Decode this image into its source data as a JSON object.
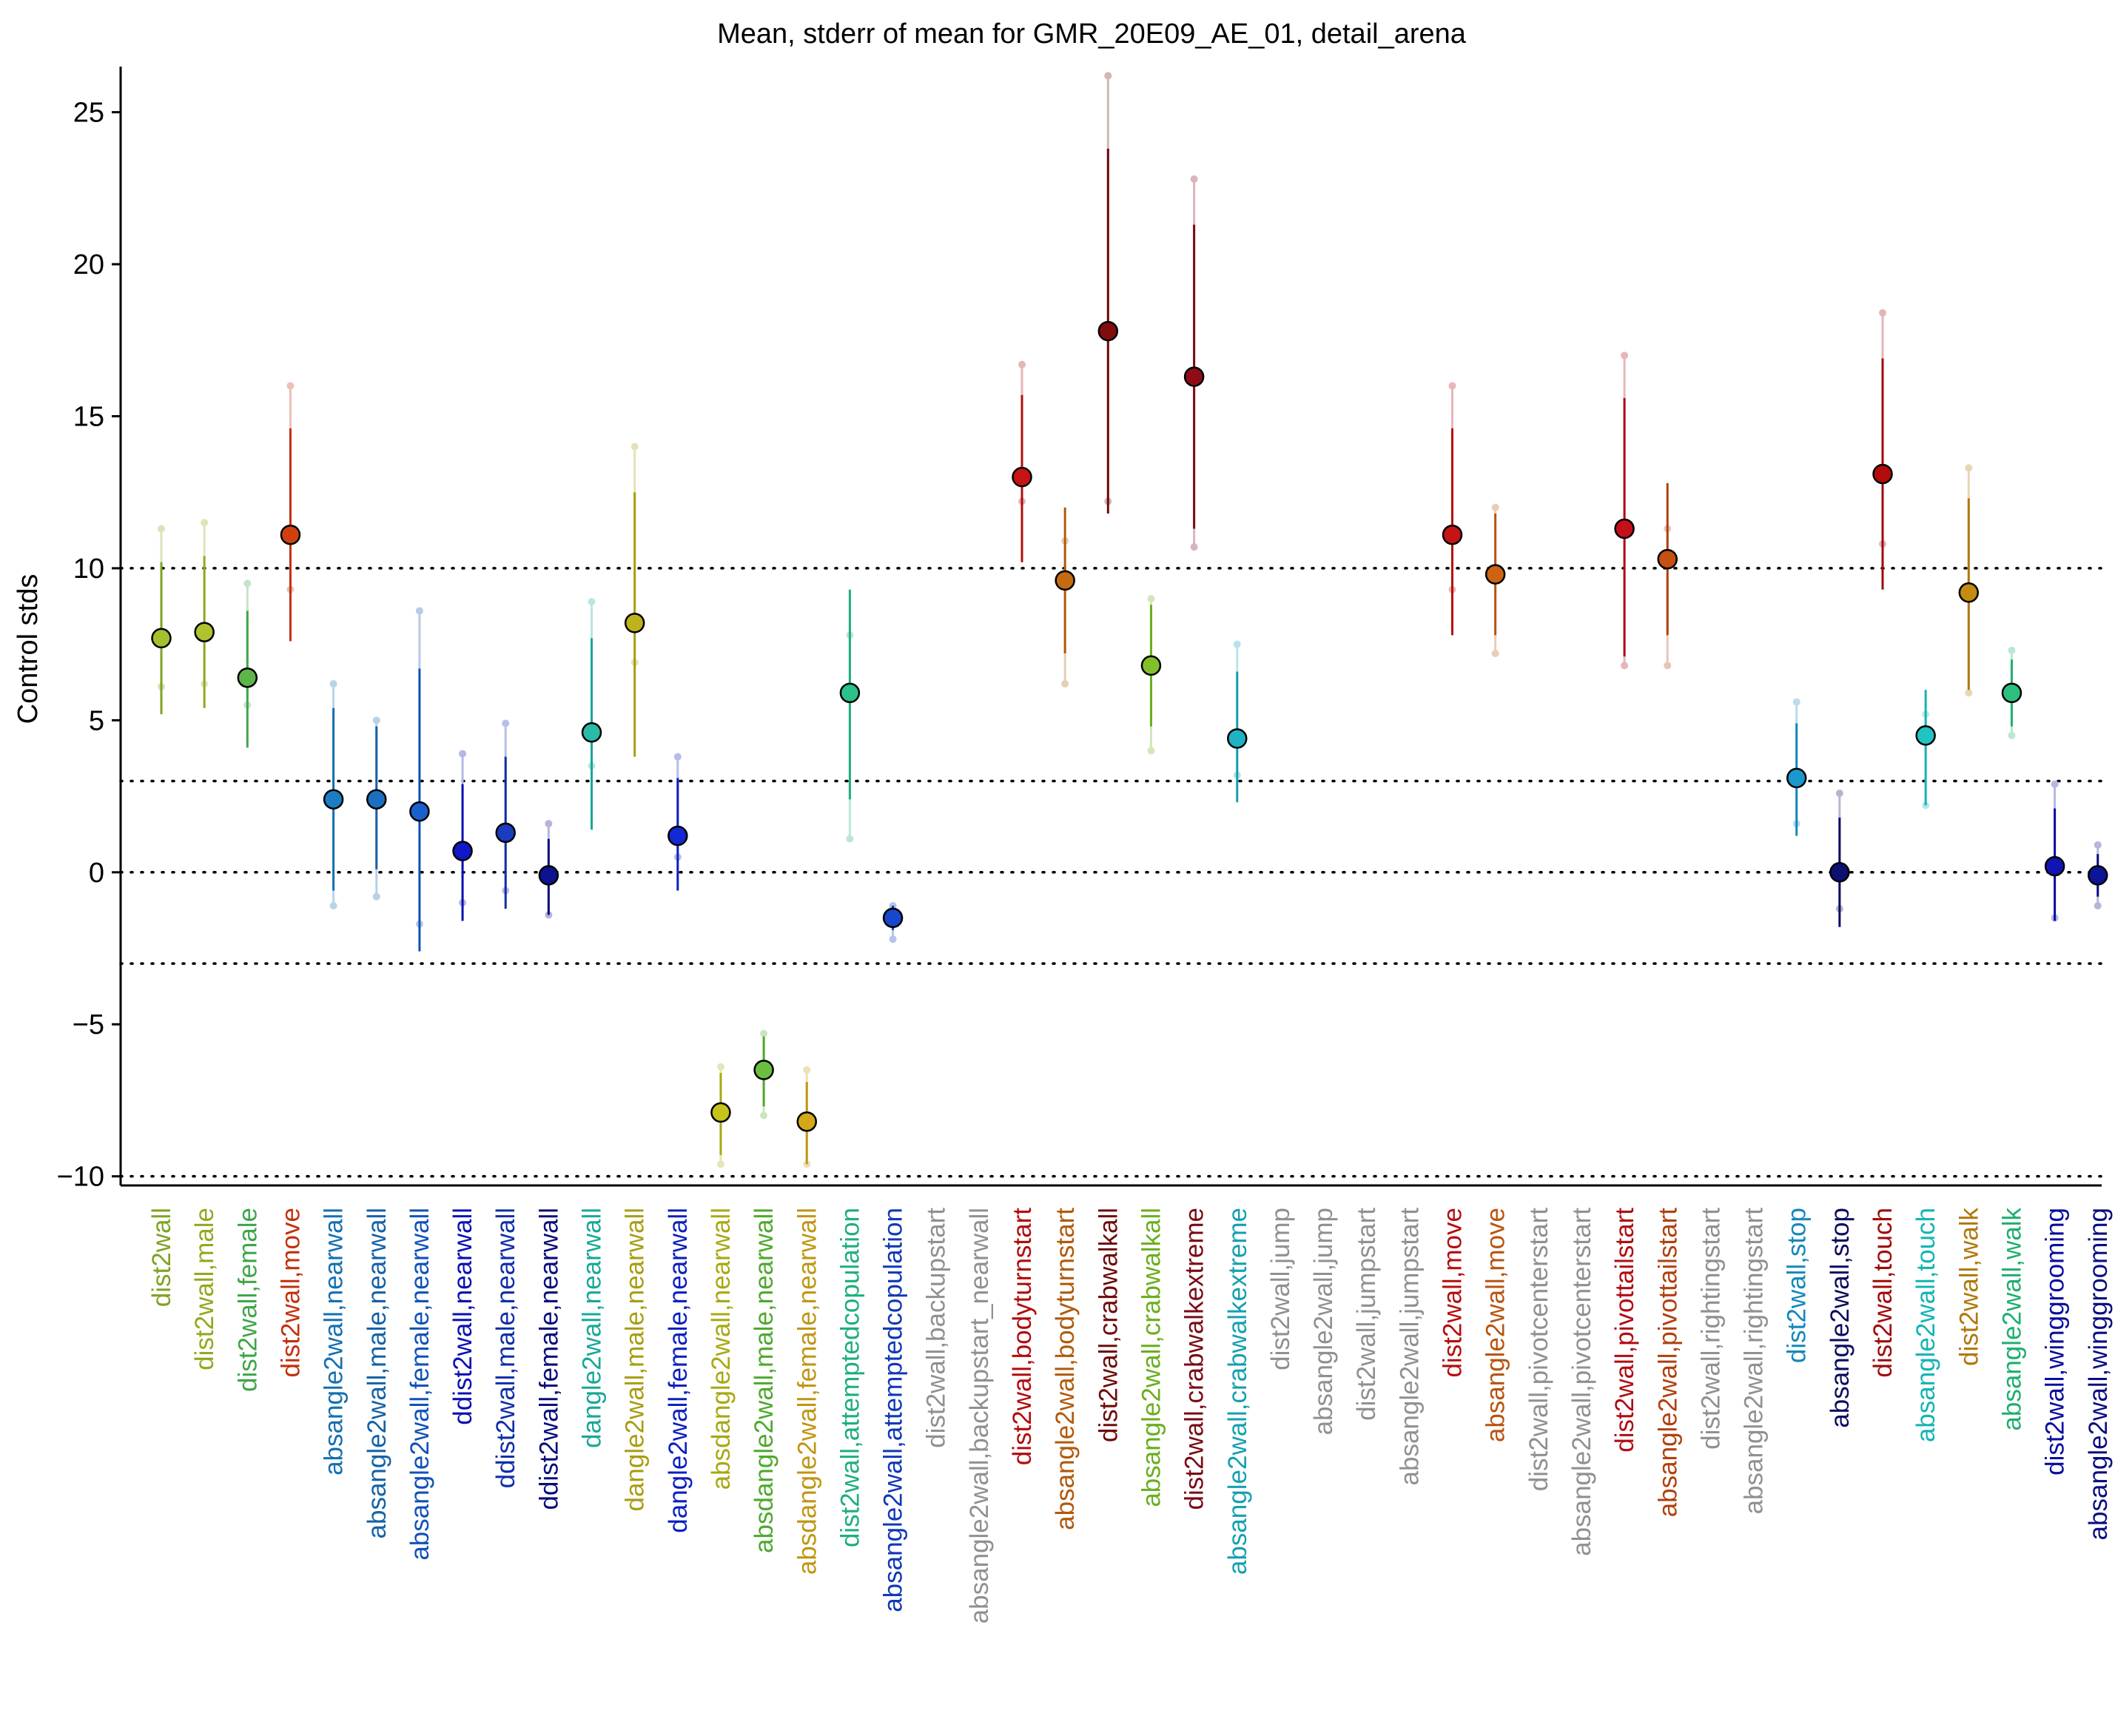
{
  "chart_data": {
    "type": "scatter",
    "title": "Mean, stderr of mean for GMR_20E09_AE_01, detail_arena",
    "xlabel": "",
    "ylabel": "Control stds",
    "ylim": [
      -10.3,
      26.5
    ],
    "yticks": [
      25,
      20,
      15,
      10,
      5,
      0,
      -5,
      -10
    ],
    "ytick_labels": [
      "25",
      "20",
      "15",
      "10",
      "5",
      "0",
      "−5",
      "−10"
    ],
    "reference_lines": [
      10,
      3,
      0,
      -3,
      -10
    ],
    "reference_line_style": "dotted",
    "points": [
      {
        "label": "dist2wall",
        "mean": 7.7,
        "sem_lo": 5.2,
        "sem_hi": 10.2,
        "ext_lo": 6.1,
        "ext_hi": 11.3,
        "color": "#7FA321",
        "fill": "#A4C02E"
      },
      {
        "label": "dist2wall,male",
        "mean": 7.9,
        "sem_lo": 5.4,
        "sem_hi": 10.4,
        "ext_lo": 6.2,
        "ext_hi": 11.5,
        "color": "#8FAA1E",
        "fill": "#B0C230"
      },
      {
        "label": "dist2wall,female",
        "mean": 6.4,
        "sem_lo": 4.1,
        "sem_hi": 8.6,
        "ext_lo": 5.5,
        "ext_hi": 9.5,
        "color": "#3FA548",
        "fill": "#5DB64B"
      },
      {
        "label": "dist2wall,move",
        "mean": 11.1,
        "sem_lo": 7.6,
        "sem_hi": 14.6,
        "ext_lo": 9.3,
        "ext_hi": 16.0,
        "color": "#C2300E",
        "fill": "#D0400E"
      },
      {
        "label": "absangle2wall,nearwall",
        "mean": 2.4,
        "sem_lo": -0.6,
        "sem_hi": 5.4,
        "ext_lo": -1.1,
        "ext_hi": 6.2,
        "color": "#1570B0",
        "fill": "#1D7DC2"
      },
      {
        "label": "absangle2wall,male,nearwall",
        "mean": 2.4,
        "sem_lo": 0.1,
        "sem_hi": 4.8,
        "ext_lo": -0.8,
        "ext_hi": 5.0,
        "color": "#1462A8",
        "fill": "#1C6FBE"
      },
      {
        "label": "absangle2wall,female,nearwall",
        "mean": 2.0,
        "sem_lo": -2.6,
        "sem_hi": 6.7,
        "ext_lo": -1.7,
        "ext_hi": 8.6,
        "color": "#1052B8",
        "fill": "#1A60CC"
      },
      {
        "label": "ddist2wall,nearwall",
        "mean": 0.7,
        "sem_lo": -1.6,
        "sem_hi": 2.9,
        "ext_lo": -1.0,
        "ext_hi": 3.9,
        "color": "#0A10B0",
        "fill": "#1018C8"
      },
      {
        "label": "ddist2wall,male,nearwall",
        "mean": 1.3,
        "sem_lo": -1.2,
        "sem_hi": 3.8,
        "ext_lo": -0.6,
        "ext_hi": 4.9,
        "color": "#0F2EA8",
        "fill": "#1A3CBE"
      },
      {
        "label": "ddist2wall,female,nearwall",
        "mean": -0.1,
        "sem_lo": -1.4,
        "sem_hi": 1.1,
        "ext_lo": -1.4,
        "ext_hi": 1.6,
        "color": "#080C7A",
        "fill": "#0D138F"
      },
      {
        "label": "dangle2wall,nearwall",
        "mean": 4.6,
        "sem_lo": 1.4,
        "sem_hi": 7.7,
        "ext_lo": 3.5,
        "ext_hi": 8.9,
        "color": "#18A898",
        "fill": "#2ABAA8"
      },
      {
        "label": "dangle2wall,male,nearwall",
        "mean": 8.2,
        "sem_lo": 3.8,
        "sem_hi": 12.5,
        "ext_lo": 6.9,
        "ext_hi": 14.0,
        "color": "#A89D12",
        "fill": "#BFB21C"
      },
      {
        "label": "dangle2wall,female,nearwall",
        "mean": 1.2,
        "sem_lo": -0.6,
        "sem_hi": 3.1,
        "ext_lo": 0.5,
        "ext_hi": 3.8,
        "color": "#0C20C0",
        "fill": "#1428D4"
      },
      {
        "label": "absdangle2wall,nearwall",
        "mean": -7.9,
        "sem_lo": -9.3,
        "sem_hi": -6.6,
        "ext_lo": -9.6,
        "ext_hi": -6.4,
        "color": "#A8A812",
        "fill": "#C4C41A"
      },
      {
        "label": "absdangle2wall,male,nearwall",
        "mean": -6.5,
        "sem_lo": -7.7,
        "sem_hi": -5.4,
        "ext_lo": -8.0,
        "ext_hi": -5.3,
        "color": "#4FA82E",
        "fill": "#6BBE3E"
      },
      {
        "label": "absdangle2wall,female,nearwall",
        "mean": -8.2,
        "sem_lo": -9.6,
        "sem_hi": -6.9,
        "ext_lo": -9.6,
        "ext_hi": -6.5,
        "color": "#C09612",
        "fill": "#D4A818"
      },
      {
        "label": "dist2wall,attemptedcopulation",
        "mean": 5.9,
        "sem_lo": 2.4,
        "sem_hi": 9.3,
        "ext_lo": 1.1,
        "ext_hi": 7.8,
        "color": "#1EAF7A",
        "fill": "#2CC08A"
      },
      {
        "label": "absangle2wall,attemptedcopulation",
        "mean": -1.5,
        "sem_lo": -1.9,
        "sem_hi": -1.1,
        "ext_lo": -2.2,
        "ext_hi": -1.1,
        "color": "#1038B8",
        "fill": "#1846CC"
      },
      {
        "label": "dist2wall,backupstart",
        "color": "#909090"
      },
      {
        "label": "absangle2wall,backupstart_nearwall",
        "color": "#909090"
      },
      {
        "label": "dist2wall,bodyturnstart",
        "mean": 13.0,
        "sem_lo": 10.2,
        "sem_hi": 15.7,
        "ext_lo": 12.2,
        "ext_hi": 16.7,
        "color": "#B00C0C",
        "fill": "#C81414"
      },
      {
        "label": "absangle2wall,bodyturnstart",
        "mean": 9.6,
        "sem_lo": 7.2,
        "sem_hi": 12.0,
        "ext_lo": 6.2,
        "ext_hi": 10.9,
        "color": "#B05A0A",
        "fill": "#C46A10"
      },
      {
        "label": "dist2wall,crabwalkall",
        "mean": 17.8,
        "sem_lo": 11.8,
        "sem_hi": 23.8,
        "ext_lo": 12.2,
        "ext_hi": 26.2,
        "color": "#6E0A0A",
        "fill": "#800C0C"
      },
      {
        "label": "absangle2wall,crabwalkall",
        "mean": 6.8,
        "sem_lo": 4.8,
        "sem_hi": 8.8,
        "ext_lo": 4.0,
        "ext_hi": 9.0,
        "color": "#6AAE1E",
        "fill": "#82C02A"
      },
      {
        "label": "dist2wall,crabwalkextreme",
        "mean": 16.3,
        "sem_lo": 11.3,
        "sem_hi": 21.3,
        "ext_lo": 10.7,
        "ext_hi": 22.8,
        "color": "#7A0A14",
        "fill": "#8E0C18"
      },
      {
        "label": "absangle2wall,crabwalkextreme",
        "mean": 4.4,
        "sem_lo": 2.3,
        "sem_hi": 6.6,
        "ext_lo": 3.2,
        "ext_hi": 7.5,
        "color": "#14A0B0",
        "fill": "#20B2C2"
      },
      {
        "label": "dist2wall,jump",
        "color": "#909090"
      },
      {
        "label": "absangle2wall,jump",
        "color": "#909090"
      },
      {
        "label": "dist2wall,jumpstart",
        "color": "#909090"
      },
      {
        "label": "absangle2wall,jumpstart",
        "color": "#909090"
      },
      {
        "label": "dist2wall,move",
        "mean": 11.1,
        "sem_lo": 7.8,
        "sem_hi": 14.6,
        "ext_lo": 9.3,
        "ext_hi": 16.0,
        "color": "#B50E0E",
        "fill": "#C41414"
      },
      {
        "label": "absangle2wall,move",
        "mean": 9.8,
        "sem_lo": 7.8,
        "sem_hi": 11.8,
        "ext_lo": 7.2,
        "ext_hi": 12.0,
        "color": "#B85410",
        "fill": "#CC6414"
      },
      {
        "label": "dist2wall,pivotcenterstart",
        "color": "#909090"
      },
      {
        "label": "absangle2wall,pivotcenterstart",
        "color": "#909090"
      },
      {
        "label": "dist2wall,pivottailstart",
        "mean": 11.3,
        "sem_lo": 7.1,
        "sem_hi": 15.6,
        "ext_lo": 6.8,
        "ext_hi": 17.0,
        "color": "#B00C14",
        "fill": "#C4101A"
      },
      {
        "label": "absangle2wall,pivottailstart",
        "mean": 10.3,
        "sem_lo": 7.8,
        "sem_hi": 12.8,
        "ext_lo": 6.8,
        "ext_hi": 11.3,
        "color": "#B0400E",
        "fill": "#C45014"
      },
      {
        "label": "dist2wall,rightingstart",
        "color": "#909090"
      },
      {
        "label": "absangle2wall,rightingstart",
        "color": "#909090"
      },
      {
        "label": "dist2wall,stop",
        "mean": 3.1,
        "sem_lo": 1.2,
        "sem_hi": 4.9,
        "ext_lo": 1.6,
        "ext_hi": 5.6,
        "color": "#1488BC",
        "fill": "#1A98CE"
      },
      {
        "label": "absangle2wall,stop",
        "mean": 0.0,
        "sem_lo": -1.8,
        "sem_hi": 1.8,
        "ext_lo": -1.2,
        "ext_hi": 2.6,
        "color": "#0A0C5E",
        "fill": "#0C1070"
      },
      {
        "label": "dist2wall,touch",
        "mean": 13.1,
        "sem_lo": 9.3,
        "sem_hi": 16.9,
        "ext_lo": 10.8,
        "ext_hi": 18.4,
        "color": "#A00A0A",
        "fill": "#B40C0C"
      },
      {
        "label": "absangle2wall,touch",
        "mean": 4.5,
        "sem_lo": 2.2,
        "sem_hi": 6.0,
        "ext_lo": 2.2,
        "ext_hi": 5.2,
        "color": "#14B4B4",
        "fill": "#20C4C4"
      },
      {
        "label": "dist2wall,walk",
        "mean": 9.2,
        "sem_lo": 6.0,
        "sem_hi": 12.3,
        "ext_lo": 5.9,
        "ext_hi": 13.3,
        "color": "#B0780C",
        "fill": "#C48A12"
      },
      {
        "label": "absangle2wall,walk",
        "mean": 5.9,
        "sem_lo": 4.8,
        "sem_hi": 7.0,
        "ext_lo": 4.5,
        "ext_hi": 7.3,
        "color": "#1EAF6E",
        "fill": "#2CC07E"
      },
      {
        "label": "dist2wall,winggrooming",
        "mean": 0.2,
        "sem_lo": -1.6,
        "sem_hi": 2.1,
        "ext_lo": -1.5,
        "ext_hi": 2.9,
        "color": "#0A0E9E",
        "fill": "#1014B4"
      },
      {
        "label": "absangle2wall,winggrooming",
        "mean": -0.1,
        "sem_lo": -0.8,
        "sem_hi": 0.6,
        "ext_lo": -1.1,
        "ext_hi": 0.9,
        "color": "#0A0E80",
        "fill": "#0E1496"
      }
    ]
  }
}
